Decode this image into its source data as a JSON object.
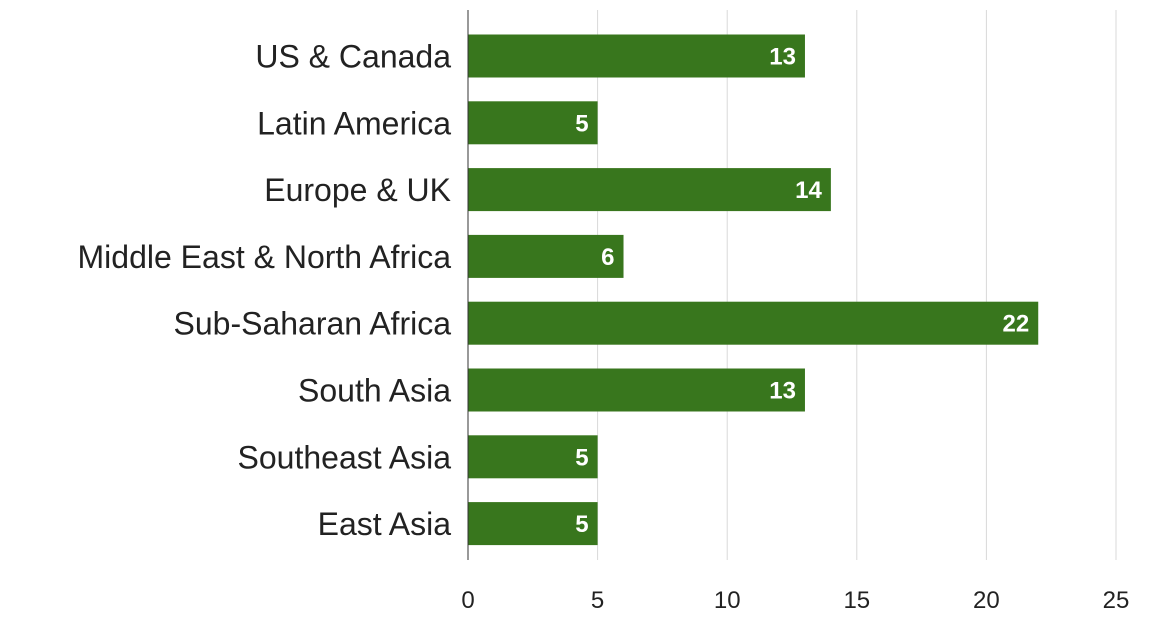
{
  "chart_data": {
    "type": "bar",
    "orientation": "horizontal",
    "categories": [
      "US & Canada",
      "Latin America",
      "Europe & UK",
      "Middle East & North Africa",
      "Sub-Saharan Africa",
      "South Asia",
      "Southeast Asia",
      "East Asia"
    ],
    "values": [
      13,
      5,
      14,
      6,
      22,
      13,
      5,
      5
    ],
    "xlim": [
      0,
      25
    ],
    "xticks": [
      0,
      5,
      10,
      15,
      20,
      25
    ],
    "title": "",
    "xlabel": "",
    "ylabel": "",
    "bar_color": "#38761d",
    "grid": true,
    "legend": "none",
    "data_labels": "inside-end"
  }
}
